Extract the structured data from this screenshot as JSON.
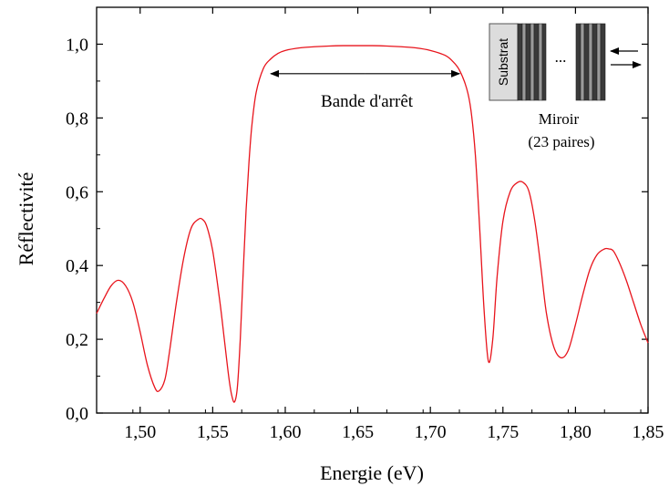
{
  "chart_data": {
    "type": "line",
    "xlabel": "Energie (eV)",
    "ylabel": "Réflectivité",
    "xlim": [
      1.47,
      1.85
    ],
    "ylim": [
      0.0,
      1.1
    ],
    "x_ticks": [
      1.5,
      1.55,
      1.6,
      1.65,
      1.7,
      1.75,
      1.8,
      1.85
    ],
    "x_tick_labels": [
      "1,50",
      "1,55",
      "1,60",
      "1,65",
      "1,70",
      "1,75",
      "1,80",
      "1,85"
    ],
    "y_ticks": [
      0.0,
      0.2,
      0.4,
      0.6,
      0.8,
      1.0
    ],
    "y_tick_labels": [
      "0,0",
      "0,2",
      "0,4",
      "0,6",
      "0,8",
      "1,0"
    ],
    "grid": false,
    "series": [
      {
        "color": "#e8141c",
        "x": [
          1.47,
          1.475,
          1.48,
          1.485,
          1.49,
          1.495,
          1.5,
          1.505,
          1.51,
          1.513,
          1.517,
          1.52,
          1.525,
          1.53,
          1.535,
          1.54,
          1.543,
          1.546,
          1.55,
          1.555,
          1.558,
          1.561,
          1.563,
          1.565,
          1.567,
          1.569,
          1.571,
          1.573,
          1.575,
          1.577,
          1.58,
          1.585,
          1.59,
          1.595,
          1.6,
          1.61,
          1.62,
          1.63,
          1.64,
          1.65,
          1.66,
          1.67,
          1.68,
          1.69,
          1.7,
          1.71,
          1.715,
          1.72,
          1.725,
          1.728,
          1.731,
          1.734,
          1.737,
          1.74,
          1.743,
          1.746,
          1.75,
          1.755,
          1.76,
          1.764,
          1.768,
          1.772,
          1.776,
          1.78,
          1.785,
          1.79,
          1.795,
          1.8,
          1.805,
          1.81,
          1.815,
          1.82,
          1.823,
          1.826,
          1.83,
          1.835,
          1.84,
          1.845,
          1.85
        ],
        "y": [
          0.27,
          0.31,
          0.345,
          0.36,
          0.345,
          0.3,
          0.22,
          0.13,
          0.07,
          0.06,
          0.09,
          0.16,
          0.3,
          0.42,
          0.5,
          0.525,
          0.525,
          0.505,
          0.44,
          0.3,
          0.2,
          0.1,
          0.05,
          0.03,
          0.07,
          0.2,
          0.38,
          0.55,
          0.68,
          0.78,
          0.87,
          0.935,
          0.96,
          0.975,
          0.983,
          0.99,
          0.993,
          0.995,
          0.996,
          0.996,
          0.996,
          0.995,
          0.993,
          0.99,
          0.983,
          0.97,
          0.955,
          0.93,
          0.88,
          0.82,
          0.7,
          0.5,
          0.28,
          0.14,
          0.2,
          0.37,
          0.52,
          0.6,
          0.625,
          0.625,
          0.6,
          0.52,
          0.4,
          0.27,
          0.18,
          0.15,
          0.17,
          0.24,
          0.32,
          0.39,
          0.43,
          0.445,
          0.445,
          0.44,
          0.41,
          0.36,
          0.3,
          0.24,
          0.19
        ]
      }
    ],
    "annotations": [
      {
        "text": "Bande d'arrêt",
        "arrow_from_x": 1.59,
        "arrow_to_x": 1.72,
        "y": 0.92
      }
    ]
  },
  "inset": {
    "substrat_label": "Substrat",
    "dots": "...",
    "caption_line1": "Miroir",
    "caption_line2": "(23 paires)"
  }
}
